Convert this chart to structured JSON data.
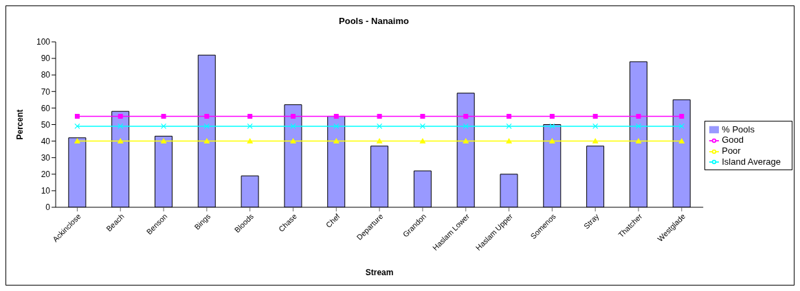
{
  "chart_data": {
    "type": "bar",
    "title": "Pools - Nanaimo",
    "xlabel": "Stream",
    "ylabel": "Percent",
    "categories": [
      "Ackinclose",
      "Beach",
      "Benson",
      "Bings",
      "Bloods",
      "Chase",
      "Chef",
      "Departure",
      "Grandon",
      "Haslam Lower",
      "Haslam Upper",
      "Somenos",
      "Stray",
      "Thatcher",
      "Westglade"
    ],
    "series": [
      {
        "name": "% Pools",
        "color": "#9999ff",
        "values": [
          42,
          58,
          43,
          92,
          19,
          62,
          55,
          37,
          22,
          69,
          20,
          50,
          37,
          88,
          65
        ]
      },
      {
        "name": "Good",
        "type": "line",
        "color": "#ff00ff",
        "marker": "square",
        "values": [
          55,
          55,
          55,
          55,
          55,
          55,
          55,
          55,
          55,
          55,
          55,
          55,
          55,
          55,
          55
        ]
      },
      {
        "name": "Poor",
        "type": "line",
        "color": "#ffff00",
        "marker": "triangle",
        "values": [
          40,
          40,
          40,
          40,
          40,
          40,
          40,
          40,
          40,
          40,
          40,
          40,
          40,
          40,
          40
        ]
      },
      {
        "name": "Island Average",
        "type": "line",
        "color": "#00ffff",
        "marker": "cross",
        "values": [
          49,
          49,
          49,
          49,
          49,
          49,
          49,
          49,
          49,
          49,
          49,
          49,
          49,
          49,
          49
        ]
      }
    ],
    "ylim": [
      0,
      100
    ],
    "yticks": [
      0,
      10,
      20,
      30,
      40,
      50,
      60,
      70,
      80,
      90,
      100
    ],
    "legend": "right"
  }
}
